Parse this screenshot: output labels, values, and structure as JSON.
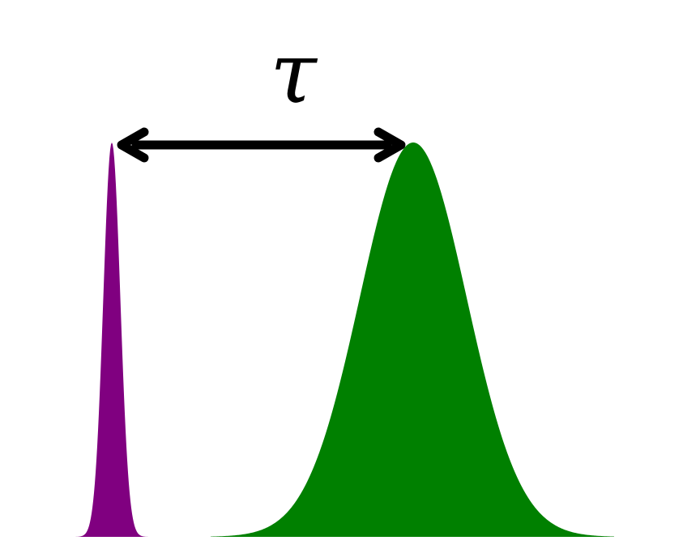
{
  "diagram": {
    "delay_label": "τ",
    "colors": {
      "narrow_pulse": "#800080",
      "wide_pulse": "#008000",
      "arrow": "#000000",
      "background": "#ffffff"
    }
  }
}
